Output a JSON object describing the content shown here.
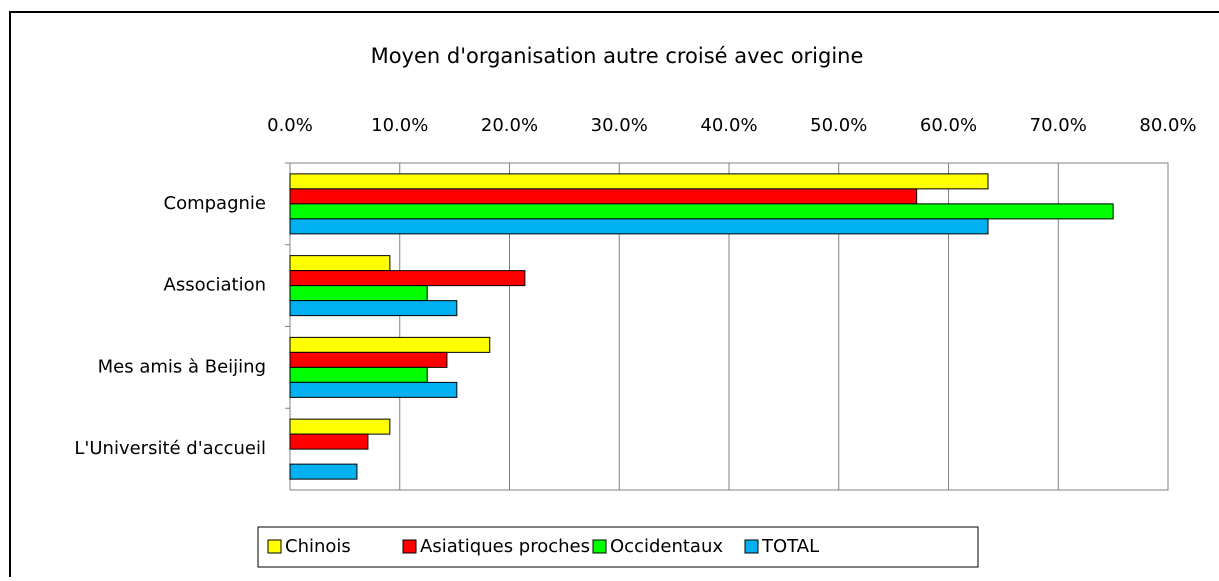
{
  "chart_data": {
    "type": "bar",
    "orientation": "horizontal",
    "title": "Moyen d'organisation autre croisé avec origine",
    "categories": [
      "Compagnie",
      "Association",
      "Mes amis à Beijing",
      "L'Université d'accueil"
    ],
    "series": [
      {
        "name": "Chinois",
        "color": "#ffff00",
        "values": [
          63.6,
          9.1,
          18.2,
          9.1
        ]
      },
      {
        "name": "Asiatiques proches",
        "color": "#ff0000",
        "values": [
          57.1,
          21.4,
          14.3,
          7.1
        ]
      },
      {
        "name": "Occidentaux",
        "color": "#00ff00",
        "values": [
          75.0,
          12.5,
          12.5,
          0
        ]
      },
      {
        "name": "TOTAL",
        "color": "#00b0f0",
        "values": [
          63.6,
          15.2,
          15.2,
          6.1
        ]
      }
    ],
    "xlim": [
      0,
      80
    ],
    "xticks": [
      {
        "value": 0,
        "label": "0.0%"
      },
      {
        "value": 10,
        "label": "10.0%"
      },
      {
        "value": 20,
        "label": "20.0%"
      },
      {
        "value": 30,
        "label": "30.0%"
      },
      {
        "value": 40,
        "label": "40.0%"
      },
      {
        "value": 50,
        "label": "50.0%"
      },
      {
        "value": 60,
        "label": "60.0%"
      },
      {
        "value": 70,
        "label": "70.0%"
      },
      {
        "value": 80,
        "label": "80.0%"
      }
    ],
    "grid": true,
    "legend": "bottom"
  }
}
